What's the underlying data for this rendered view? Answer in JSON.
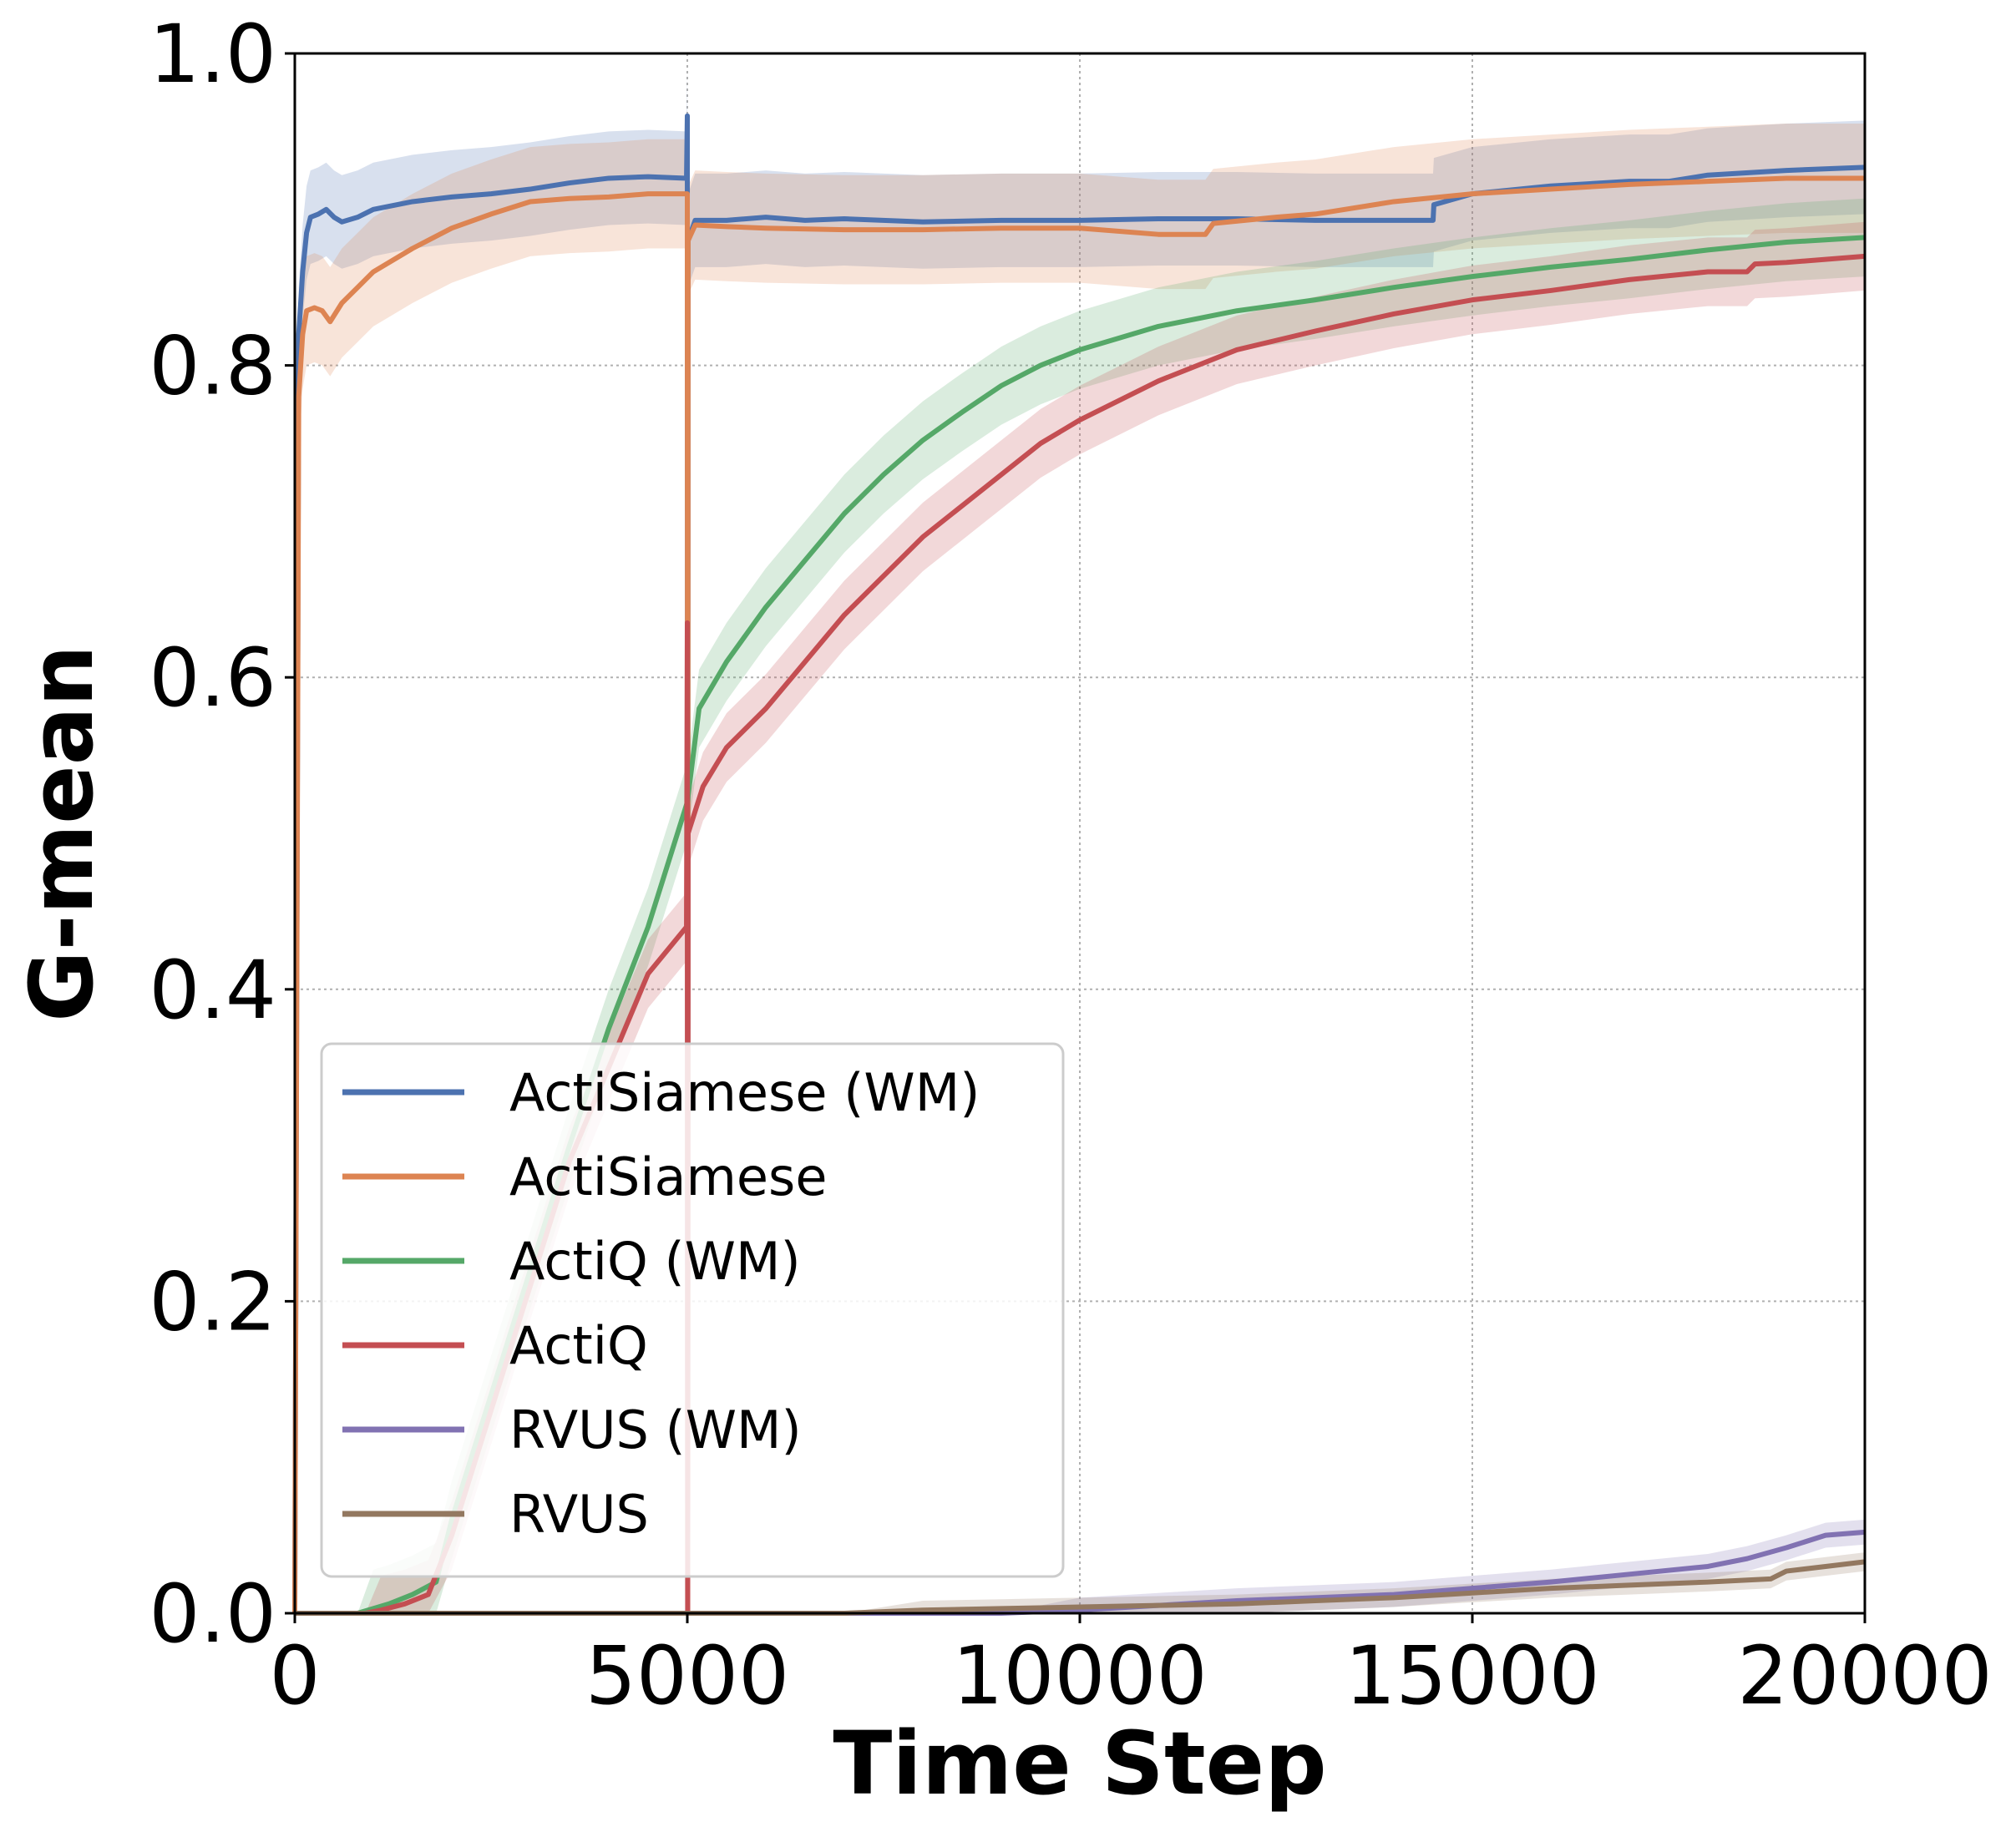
{
  "chart_data": {
    "type": "line",
    "title": "",
    "xlabel": "Time Step",
    "ylabel": "G-mean",
    "xlim": [
      0,
      20000
    ],
    "ylim": [
      0,
      1.0
    ],
    "xticks": [
      "0",
      "5000",
      "10000",
      "15000",
      "20000"
    ],
    "yticks": [
      "0.0",
      "0.2",
      "0.4",
      "0.6",
      "0.8",
      "1.0"
    ],
    "grid": true,
    "legend_position": "lower-left",
    "series": [
      {
        "name": "ActiSiamese (WM)",
        "color": "#4c72b0",
        "band": 0.03,
        "points": [
          [
            0,
            0
          ],
          [
            50,
            0.82
          ],
          [
            100,
            0.86
          ],
          [
            150,
            0.885
          ],
          [
            200,
            0.895
          ],
          [
            300,
            0.897
          ],
          [
            400,
            0.9
          ],
          [
            500,
            0.895
          ],
          [
            600,
            0.892
          ],
          [
            800,
            0.895
          ],
          [
            1000,
            0.9
          ],
          [
            1500,
            0.905
          ],
          [
            2000,
            0.908
          ],
          [
            2500,
            0.91
          ],
          [
            3000,
            0.913
          ],
          [
            3500,
            0.917
          ],
          [
            4000,
            0.92
          ],
          [
            4500,
            0.921
          ],
          [
            4990,
            0.92
          ],
          [
            5000,
            0.96
          ],
          [
            5005,
            0.0
          ],
          [
            5010,
            0.88
          ],
          [
            5100,
            0.893
          ],
          [
            5500,
            0.893
          ],
          [
            6000,
            0.895
          ],
          [
            6500,
            0.893
          ],
          [
            7000,
            0.894
          ],
          [
            8000,
            0.892
          ],
          [
            9000,
            0.893
          ],
          [
            10000,
            0.893
          ],
          [
            11000,
            0.894
          ],
          [
            12000,
            0.894
          ],
          [
            13000,
            0.893
          ],
          [
            14000,
            0.893
          ],
          [
            14500,
            0.893
          ],
          [
            14510,
            0.903
          ],
          [
            15000,
            0.91
          ],
          [
            16000,
            0.915
          ],
          [
            17000,
            0.918
          ],
          [
            17500,
            0.918
          ],
          [
            18000,
            0.922
          ],
          [
            19000,
            0.925
          ],
          [
            20000,
            0.927
          ]
        ]
      },
      {
        "name": "ActiSiamese",
        "color": "#dd8452",
        "band": 0.035,
        "points": [
          [
            0,
            0
          ],
          [
            50,
            0.78
          ],
          [
            100,
            0.82
          ],
          [
            150,
            0.835
          ],
          [
            250,
            0.837
          ],
          [
            350,
            0.835
          ],
          [
            450,
            0.828
          ],
          [
            600,
            0.84
          ],
          [
            800,
            0.85
          ],
          [
            1000,
            0.86
          ],
          [
            1500,
            0.875
          ],
          [
            2000,
            0.888
          ],
          [
            2500,
            0.897
          ],
          [
            3000,
            0.905
          ],
          [
            3500,
            0.907
          ],
          [
            4000,
            0.908
          ],
          [
            4500,
            0.91
          ],
          [
            5000,
            0.91
          ],
          [
            5005,
            0.0
          ],
          [
            5010,
            0.88
          ],
          [
            5100,
            0.89
          ],
          [
            5500,
            0.889
          ],
          [
            6000,
            0.888
          ],
          [
            7000,
            0.887
          ],
          [
            8000,
            0.887
          ],
          [
            9000,
            0.888
          ],
          [
            10000,
            0.888
          ],
          [
            11000,
            0.884
          ],
          [
            11600,
            0.884
          ],
          [
            11700,
            0.891
          ],
          [
            12500,
            0.895
          ],
          [
            13000,
            0.897
          ],
          [
            14000,
            0.905
          ],
          [
            15000,
            0.91
          ],
          [
            16000,
            0.913
          ],
          [
            17000,
            0.916
          ],
          [
            18000,
            0.918
          ],
          [
            19000,
            0.92
          ],
          [
            20000,
            0.92
          ]
        ]
      },
      {
        "name": "ActiQ (WM)",
        "color": "#55a868",
        "band": 0.025,
        "points": [
          [
            0,
            0
          ],
          [
            800,
            0.0
          ],
          [
            1000,
            0.003
          ],
          [
            1200,
            0.006
          ],
          [
            1500,
            0.012
          ],
          [
            1800,
            0.02
          ],
          [
            2000,
            0.06
          ],
          [
            2500,
            0.14
          ],
          [
            3000,
            0.22
          ],
          [
            3500,
            0.3
          ],
          [
            4000,
            0.375
          ],
          [
            4500,
            0.44
          ],
          [
            5000,
            0.52
          ],
          [
            5150,
            0.58
          ],
          [
            5500,
            0.61
          ],
          [
            6000,
            0.645
          ],
          [
            6500,
            0.675
          ],
          [
            7000,
            0.705
          ],
          [
            7500,
            0.73
          ],
          [
            8000,
            0.752
          ],
          [
            8500,
            0.77
          ],
          [
            9000,
            0.787
          ],
          [
            9500,
            0.8
          ],
          [
            10000,
            0.81
          ],
          [
            11000,
            0.825
          ],
          [
            12000,
            0.835
          ],
          [
            13000,
            0.842
          ],
          [
            14000,
            0.85
          ],
          [
            15000,
            0.857
          ],
          [
            16000,
            0.863
          ],
          [
            17000,
            0.868
          ],
          [
            18000,
            0.874
          ],
          [
            19000,
            0.879
          ],
          [
            20000,
            0.882
          ]
        ]
      },
      {
        "name": "ActiQ",
        "color": "#c44e52",
        "band": 0.022,
        "points": [
          [
            0,
            0
          ],
          [
            900,
            0.0
          ],
          [
            1100,
            0.002
          ],
          [
            1400,
            0.006
          ],
          [
            1700,
            0.012
          ],
          [
            2000,
            0.05
          ],
          [
            2500,
            0.13
          ],
          [
            3000,
            0.21
          ],
          [
            3500,
            0.29
          ],
          [
            4000,
            0.35
          ],
          [
            4500,
            0.41
          ],
          [
            4990,
            0.44
          ],
          [
            5000,
            0.635
          ],
          [
            5005,
            0.0
          ],
          [
            5010,
            0.5
          ],
          [
            5200,
            0.53
          ],
          [
            5500,
            0.555
          ],
          [
            6000,
            0.58
          ],
          [
            6500,
            0.61
          ],
          [
            7000,
            0.64
          ],
          [
            7500,
            0.665
          ],
          [
            8000,
            0.69
          ],
          [
            8500,
            0.71
          ],
          [
            9000,
            0.73
          ],
          [
            9500,
            0.75
          ],
          [
            10000,
            0.765
          ],
          [
            11000,
            0.79
          ],
          [
            12000,
            0.81
          ],
          [
            13000,
            0.822
          ],
          [
            14000,
            0.833
          ],
          [
            15000,
            0.842
          ],
          [
            16000,
            0.848
          ],
          [
            17000,
            0.855
          ],
          [
            18000,
            0.86
          ],
          [
            18500,
            0.86
          ],
          [
            18600,
            0.865
          ],
          [
            19000,
            0.866
          ],
          [
            20000,
            0.87
          ]
        ]
      },
      {
        "name": "RVUS (WM)",
        "color": "#8172b2",
        "band": 0.008,
        "points": [
          [
            0,
            0
          ],
          [
            9000,
            0.0
          ],
          [
            10000,
            0.002
          ],
          [
            11000,
            0.005
          ],
          [
            12000,
            0.008
          ],
          [
            13000,
            0.01
          ],
          [
            14000,
            0.012
          ],
          [
            15000,
            0.016
          ],
          [
            16000,
            0.02
          ],
          [
            17000,
            0.025
          ],
          [
            18000,
            0.03
          ],
          [
            18500,
            0.035
          ],
          [
            19000,
            0.042
          ],
          [
            19500,
            0.05
          ],
          [
            20000,
            0.052
          ]
        ]
      },
      {
        "name": "RVUS",
        "color": "#937860",
        "band": 0.006,
        "points": [
          [
            0,
            0
          ],
          [
            7000,
            0.0
          ],
          [
            8000,
            0.002
          ],
          [
            9000,
            0.003
          ],
          [
            10000,
            0.004
          ],
          [
            11000,
            0.005
          ],
          [
            12000,
            0.006
          ],
          [
            13000,
            0.008
          ],
          [
            14000,
            0.01
          ],
          [
            15000,
            0.013
          ],
          [
            16000,
            0.016
          ],
          [
            17000,
            0.018
          ],
          [
            18000,
            0.02
          ],
          [
            18800,
            0.022
          ],
          [
            19000,
            0.027
          ],
          [
            19500,
            0.03
          ],
          [
            20000,
            0.033
          ]
        ]
      }
    ]
  }
}
